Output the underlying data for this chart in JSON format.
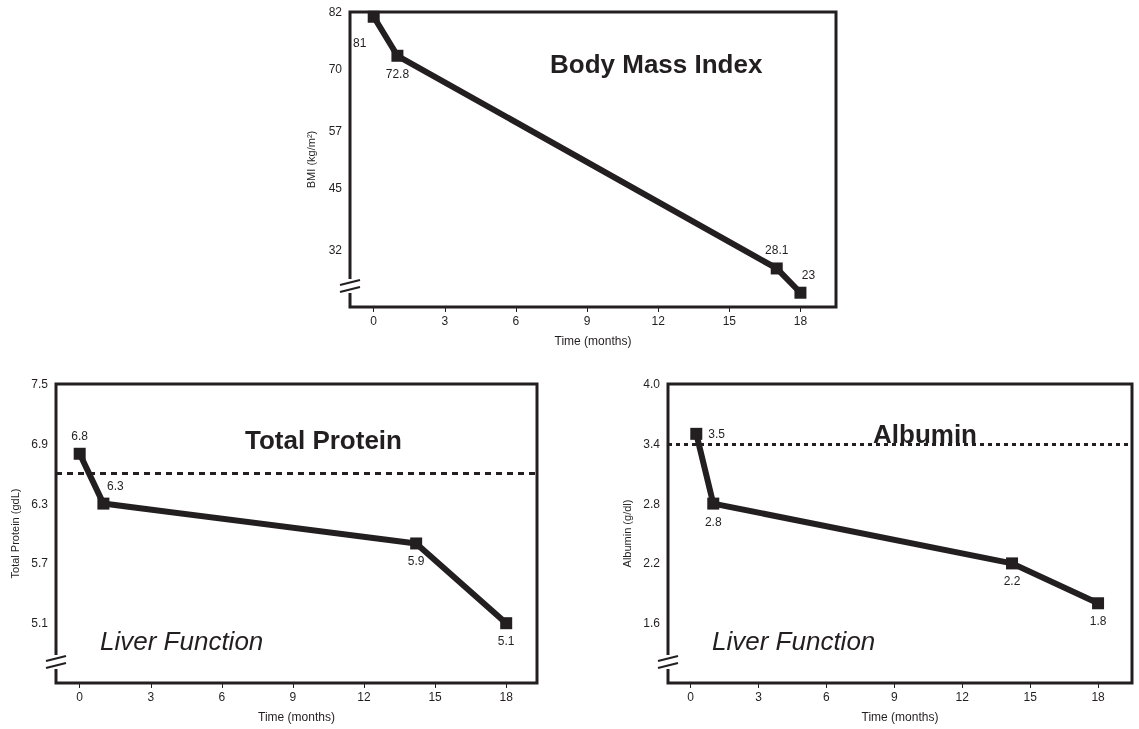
{
  "chart_data": [
    {
      "type": "line",
      "title": "Body Mass Index",
      "xlabel": "Time (months)",
      "ylabel": "BMI (kg/m²)",
      "x": [
        0,
        1,
        17,
        18
      ],
      "series": [
        {
          "color": "#231f20",
          "values": [
            81,
            72.8,
            28.1,
            23
          ]
        }
      ],
      "xlim": [
        -1,
        19.5
      ],
      "xticks": [
        0,
        3,
        6,
        9,
        12,
        15,
        18
      ],
      "ylim": [
        20,
        82
      ],
      "yticks": [
        32,
        45,
        57,
        70,
        82
      ],
      "marker": "square",
      "data_labels": true,
      "grid": false
    },
    {
      "type": "line",
      "title": "Total Protein",
      "xlabel": "Time (months)",
      "ylabel": "Total Protein (gdL)",
      "x": [
        0,
        1,
        14.2,
        18
      ],
      "series": [
        {
          "color": "#231f20",
          "values": [
            6.8,
            6.3,
            5.9,
            5.1
          ]
        }
      ],
      "xlim": [
        -1,
        19.3
      ],
      "xticks": [
        0,
        3,
        6,
        9,
        12,
        15,
        18
      ],
      "ylim": [
        4.5,
        7.5
      ],
      "yticks": [
        5.1,
        5.7,
        6.3,
        6.9,
        7.5
      ],
      "ref_lines": [
        {
          "axis": "y",
          "value": 6.6,
          "color": "#231f20",
          "line_style": "dashed"
        }
      ],
      "annotations": [
        "Liver Function"
      ],
      "marker": "square",
      "data_labels": true,
      "grid": false
    },
    {
      "type": "line",
      "title": "Albumin",
      "xlabel": "Time (months)",
      "ylabel": "Albumin (g/dl)",
      "x": [
        0.25,
        1,
        14.2,
        18
      ],
      "series": [
        {
          "color": "#231f20",
          "values": [
            3.5,
            2.8,
            2.2,
            1.8
          ]
        }
      ],
      "xlim": [
        -1,
        19.5
      ],
      "xticks": [
        0,
        3,
        6,
        9,
        12,
        15,
        18
      ],
      "ylim": [
        1.0,
        4.0
      ],
      "yticks": [
        1.6,
        2.2,
        2.8,
        3.4,
        {
          "value": 4,
          "label": "4.0"
        }
      ],
      "ref_lines": [
        {
          "axis": "y",
          "value": 3.4,
          "color": "#231f20",
          "line_style": "dotted"
        }
      ],
      "annotations": [
        "Liver Function"
      ],
      "marker": "square",
      "data_labels": true,
      "grid": false
    }
  ]
}
